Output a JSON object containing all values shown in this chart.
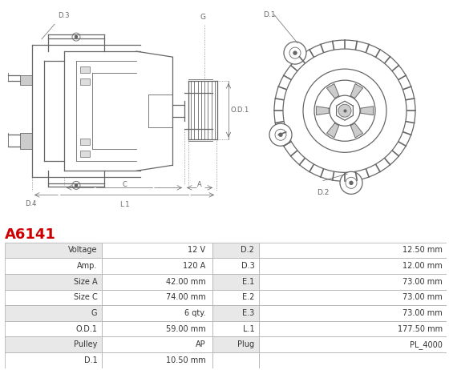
{
  "title": "A6141",
  "title_color": "#cc0000",
  "background_color": "#ffffff",
  "table_row_bg_even": "#e8e8e8",
  "table_row_bg_odd": "#ffffff",
  "table_border_color": "#aaaaaa",
  "diagram_line_color": "#666666",
  "left_col_labels": [
    "Voltage",
    "Amp.",
    "Size A",
    "Size C",
    "G",
    "O.D.1",
    "Pulley",
    "D.1"
  ],
  "left_col_values": [
    "12 V",
    "120 A",
    "42.00 mm",
    "74.00 mm",
    "6 qty.",
    "59.00 mm",
    "AP",
    "10.50 mm"
  ],
  "right_col_labels": [
    "D.2",
    "D.3",
    "E.1",
    "E.2",
    "E.3",
    "L.1",
    "Plug",
    ""
  ],
  "right_col_values": [
    "12.50 mm",
    "12.00 mm",
    "73.00 mm",
    "73.00 mm",
    "73.00 mm",
    "177.50 mm",
    "PL_4000",
    ""
  ]
}
